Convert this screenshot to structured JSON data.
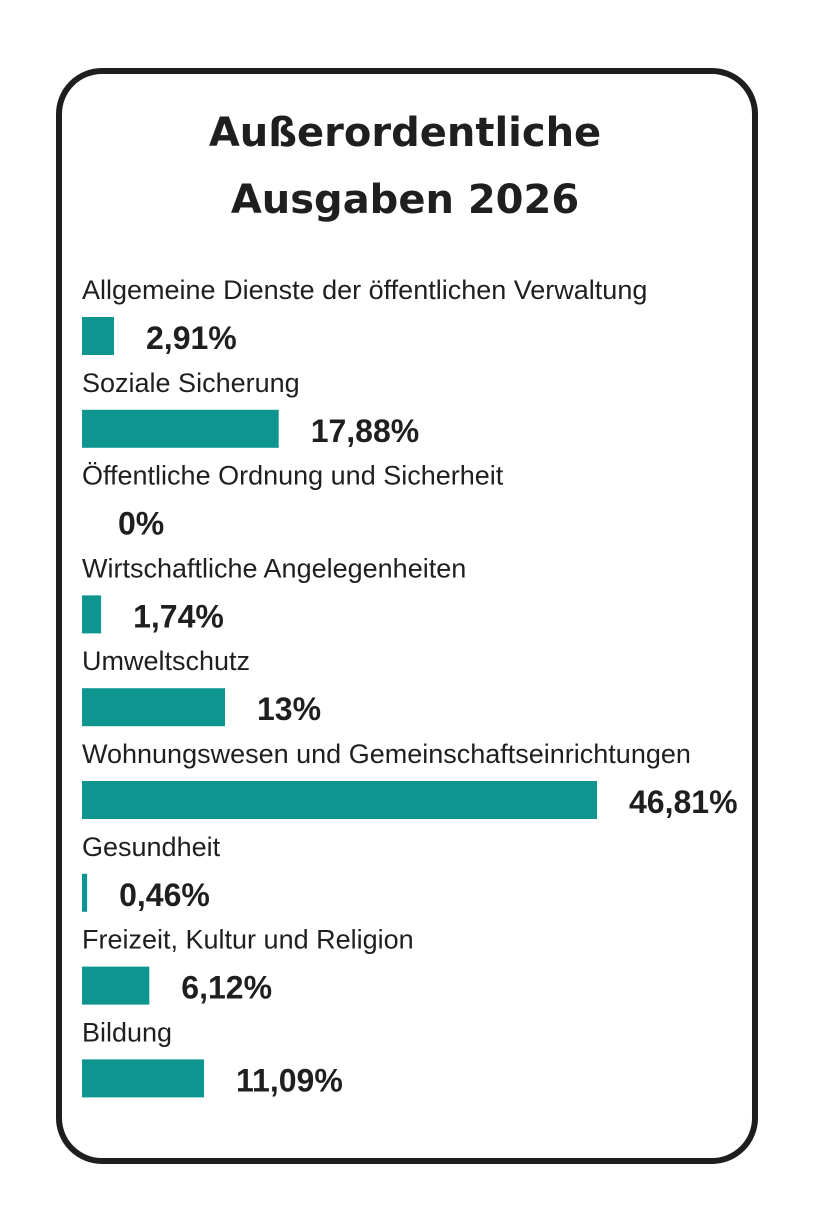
{
  "chart_data": {
    "type": "bar",
    "orientation": "horizontal",
    "title_lines": [
      "Außerordentliche",
      "Ausgaben 2026"
    ],
    "categories": [
      "Allgemeine Dienste der öffentlichen Verwaltung",
      "Soziale Sicherung",
      "Öffentliche Ordnung und Sicherheit",
      "Wirtschaftliche Angelegenheiten",
      "Umweltschutz",
      "Wohnungswesen und Gemeinschaftseinrichtungen",
      "Gesundheit",
      "Freizeit, Kultur und Religion",
      "Bildung"
    ],
    "values": [
      2.91,
      17.88,
      0,
      1.74,
      13,
      46.81,
      0.46,
      6.12,
      11.09
    ],
    "value_labels": [
      "2,91%",
      "17,88%",
      "0%",
      "1,74%",
      "13%",
      "46,81%",
      "0,46%",
      "6,12%",
      "11,09%"
    ],
    "unit": "%",
    "xlim": [
      0,
      46.81
    ],
    "xlabel": "",
    "ylabel": "",
    "grid": false,
    "legend": "none",
    "bar_color": "#0e9590"
  }
}
